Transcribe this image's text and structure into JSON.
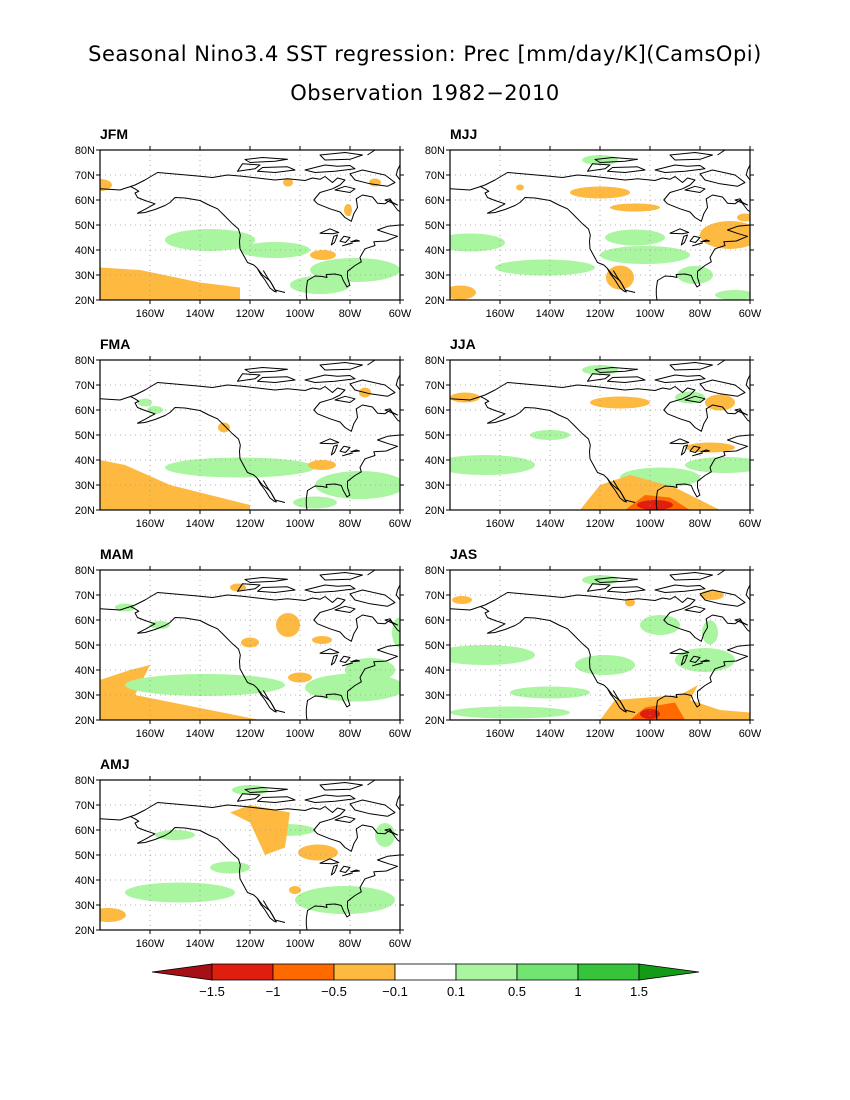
{
  "title": "Seasonal Nino3.4 SST regression: Prec [mm/day/K](CamsOpi)",
  "subtitle": "Observation 1982−2010",
  "map": {
    "lat_labels": [
      "80N",
      "70N",
      "60N",
      "50N",
      "40N",
      "30N",
      "20N"
    ],
    "lon_labels": [
      "160W",
      "140W",
      "120W",
      "100W",
      "80W",
      "60W"
    ],
    "lat_range": [
      20,
      80
    ],
    "lon_range": [
      -180,
      -60
    ]
  },
  "panels": [
    {
      "label": "JFM"
    },
    {
      "label": "MJJ"
    },
    {
      "label": "FMA"
    },
    {
      "label": "JJA"
    },
    {
      "label": "MAM"
    },
    {
      "label": "JAS"
    },
    {
      "label": "AMJ"
    }
  ],
  "colorbar": {
    "ticks": [
      "−1.5",
      "−1",
      "−0.5",
      "−0.1",
      "0.1",
      "0.5",
      "1",
      "1.5"
    ],
    "colors": [
      "#a50f15",
      "#e01e10",
      "#ff6a00",
      "#fdb940",
      "#ffffff",
      "#a9f5a0",
      "#72e472",
      "#35c43a",
      "#139b18"
    ],
    "legend_colors": {
      "light_orange": "#fdb940",
      "orange": "#ff6a00",
      "red": "#e01e10",
      "light_green": "#a9f5a0",
      "green": "#72e472",
      "dark_green": "#35c43a"
    }
  }
}
